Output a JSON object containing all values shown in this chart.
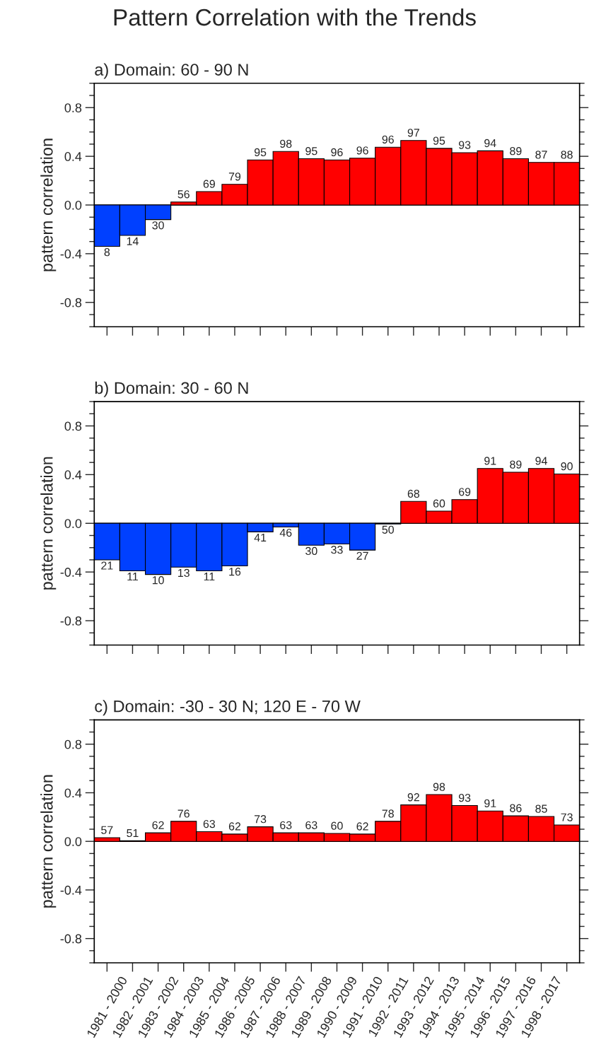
{
  "chart_data": [
    {
      "type": "bar",
      "title": "Pattern Correlation with the Trends",
      "subtitle": "a) Domain: 60 - 90 N",
      "ylabel": "pattern correlation",
      "categories": [
        null,
        null,
        null,
        null,
        null,
        null,
        null,
        null,
        null,
        null,
        null,
        null,
        null,
        null,
        null,
        null,
        null,
        null,
        null
      ],
      "series": [
        {
          "values": [
            -0.34,
            -0.25,
            -0.12,
            0.025,
            0.11,
            0.17,
            0.37,
            0.44,
            0.38,
            0.37,
            0.385,
            0.475,
            0.53,
            0.465,
            0.43,
            0.445,
            0.38,
            0.35,
            0.35
          ],
          "colors": [
            "#0040ff",
            "#0040ff",
            "#0040ff",
            "#ff0000",
            "#ff0000",
            "#ff0000",
            "#ff0000",
            "#ff0000",
            "#ff0000",
            "#ff0000",
            "#ff0000",
            "#ff0000",
            "#ff0000",
            "#ff0000",
            "#ff0000",
            "#ff0000",
            "#ff0000",
            "#ff0000",
            "#ff0000"
          ]
        }
      ],
      "annotations": [
        {
          "text": "8",
          "y": -0.34
        },
        {
          "text": "14",
          "y": -0.25
        },
        {
          "text": "30",
          "y": -0.12
        },
        {
          "text": "56",
          "y": 0.025
        },
        {
          "text": "69",
          "y": 0.11
        },
        {
          "text": "79",
          "y": 0.17
        },
        {
          "text": "95",
          "y": 0.37
        },
        {
          "text": "98",
          "y": 0.44
        },
        {
          "text": "95",
          "y": 0.38
        },
        {
          "text": "96",
          "y": 0.37
        },
        {
          "text": "96",
          "y": 0.385
        },
        {
          "text": "96",
          "y": 0.475
        },
        {
          "text": "97",
          "y": 0.53
        },
        {
          "text": "95",
          "y": 0.465
        },
        {
          "text": "93",
          "y": 0.43
        },
        {
          "text": "94",
          "y": 0.445
        },
        {
          "text": "89",
          "y": 0.38
        },
        {
          "text": "87",
          "y": 0.35
        },
        {
          "text": "88",
          "y": 0.35
        }
      ],
      "ref_lines": [
        {
          "axis": "y",
          "value": 0
        }
      ],
      "ylim": [
        -1,
        1
      ],
      "yticks": [
        {
          "value": -1,
          "label": null
        },
        {
          "value": -0.9,
          "label": null
        },
        -0.8,
        {
          "value": -0.7,
          "label": null
        },
        {
          "value": -0.6,
          "label": null
        },
        {
          "value": -0.5,
          "label": null
        },
        -0.4,
        {
          "value": -0.3,
          "label": null
        },
        {
          "value": -0.2,
          "label": null
        },
        {
          "value": -0.1,
          "label": null
        },
        {
          "value": 0,
          "label": "0.0"
        },
        {
          "value": 0.1,
          "label": null
        },
        {
          "value": 0.2,
          "label": null
        },
        {
          "value": 0.3,
          "label": null
        },
        0.4,
        {
          "value": 0.5,
          "label": null
        },
        {
          "value": 0.6,
          "label": null
        },
        {
          "value": 0.7,
          "label": null
        },
        0.8,
        {
          "value": 0.9,
          "label": null
        },
        {
          "value": 1,
          "label": null
        }
      ],
      "tick_labels": "y"
    },
    {
      "type": "bar",
      "subtitle": "b) Domain: 30 - 60 N",
      "ylabel": "pattern correlation",
      "categories": [
        null,
        null,
        null,
        null,
        null,
        null,
        null,
        null,
        null,
        null,
        null,
        null,
        null,
        null,
        null,
        null,
        null,
        null,
        null
      ],
      "series": [
        {
          "values": [
            -0.3,
            -0.39,
            -0.42,
            -0.36,
            -0.39,
            -0.35,
            -0.07,
            -0.03,
            -0.18,
            -0.17,
            -0.22,
            -0.005,
            0.18,
            0.1,
            0.195,
            0.45,
            0.42,
            0.45,
            0.405
          ],
          "colors": [
            "#0040ff",
            "#0040ff",
            "#0040ff",
            "#0040ff",
            "#0040ff",
            "#0040ff",
            "#0040ff",
            "#0040ff",
            "#0040ff",
            "#0040ff",
            "#0040ff",
            "#0040ff",
            "#ff0000",
            "#ff0000",
            "#ff0000",
            "#ff0000",
            "#ff0000",
            "#ff0000",
            "#ff0000"
          ]
        }
      ],
      "annotations": [
        {
          "text": "21",
          "y": -0.3
        },
        {
          "text": "11",
          "y": -0.39
        },
        {
          "text": "10",
          "y": -0.42
        },
        {
          "text": "13",
          "y": -0.36
        },
        {
          "text": "11",
          "y": -0.39
        },
        {
          "text": "16",
          "y": -0.35
        },
        {
          "text": "41",
          "y": -0.07
        },
        {
          "text": "46",
          "y": -0.03
        },
        {
          "text": "30",
          "y": -0.18
        },
        {
          "text": "33",
          "y": -0.17
        },
        {
          "text": "27",
          "y": -0.22
        },
        {
          "text": "50",
          "y": -0.005
        },
        {
          "text": "68",
          "y": 0.18
        },
        {
          "text": "60",
          "y": 0.1
        },
        {
          "text": "69",
          "y": 0.195
        },
        {
          "text": "91",
          "y": 0.45
        },
        {
          "text": "89",
          "y": 0.42
        },
        {
          "text": "94",
          "y": 0.45
        },
        {
          "text": "90",
          "y": 0.405
        }
      ],
      "ref_lines": [
        {
          "axis": "y",
          "value": 0
        }
      ],
      "ylim": [
        -1,
        1
      ],
      "yticks": [
        {
          "value": -1,
          "label": null
        },
        {
          "value": -0.9,
          "label": null
        },
        -0.8,
        {
          "value": -0.7,
          "label": null
        },
        {
          "value": -0.6,
          "label": null
        },
        {
          "value": -0.5,
          "label": null
        },
        -0.4,
        {
          "value": -0.3,
          "label": null
        },
        {
          "value": -0.2,
          "label": null
        },
        {
          "value": -0.1,
          "label": null
        },
        {
          "value": 0,
          "label": "0.0"
        },
        {
          "value": 0.1,
          "label": null
        },
        {
          "value": 0.2,
          "label": null
        },
        {
          "value": 0.3,
          "label": null
        },
        0.4,
        {
          "value": 0.5,
          "label": null
        },
        {
          "value": 0.6,
          "label": null
        },
        {
          "value": 0.7,
          "label": null
        },
        0.8,
        {
          "value": 0.9,
          "label": null
        },
        {
          "value": 1,
          "label": null
        }
      ],
      "tick_labels": "y"
    },
    {
      "type": "bar",
      "subtitle": "c) Domain: -30 - 30 N; 120 E - 70 W",
      "ylabel": "pattern correlation",
      "categories": [
        "1981 - 2000",
        "1982 - 2001",
        "1983 - 2002",
        "1984 - 2003",
        "1985 - 2004",
        "1986 - 2005",
        "1987 - 2006",
        "1988 - 2007",
        "1989 - 2008",
        "1990 - 2009",
        "1991 - 2010",
        "1992 - 2011",
        "1993 - 2012",
        "1994 - 2013",
        "1995 - 2014",
        "1996 - 2015",
        "1997 - 2016",
        "1998 - 2017",
        null
      ],
      "series": [
        {
          "values": [
            0.03,
            0.005,
            0.07,
            0.165,
            0.08,
            0.06,
            0.12,
            0.07,
            0.07,
            0.065,
            0.06,
            0.165,
            0.3,
            0.385,
            0.295,
            0.25,
            0.21,
            0.205,
            0.135
          ],
          "colors": [
            "#ff0000",
            "#ff0000",
            "#ff0000",
            "#ff0000",
            "#ff0000",
            "#ff0000",
            "#ff0000",
            "#ff0000",
            "#ff0000",
            "#ff0000",
            "#ff0000",
            "#ff0000",
            "#ff0000",
            "#ff0000",
            "#ff0000",
            "#ff0000",
            "#ff0000",
            "#ff0000",
            "#ff0000"
          ]
        }
      ],
      "annotations": [
        {
          "text": "57",
          "y": 0.03
        },
        {
          "text": "51",
          "y": 0.005
        },
        {
          "text": "62",
          "y": 0.07
        },
        {
          "text": "76",
          "y": 0.165
        },
        {
          "text": "63",
          "y": 0.08
        },
        {
          "text": "62",
          "y": 0.06
        },
        {
          "text": "73",
          "y": 0.12
        },
        {
          "text": "63",
          "y": 0.07
        },
        {
          "text": "63",
          "y": 0.07
        },
        {
          "text": "60",
          "y": 0.065
        },
        {
          "text": "62",
          "y": 0.06
        },
        {
          "text": "78",
          "y": 0.165
        },
        {
          "text": "92",
          "y": 0.3
        },
        {
          "text": "98",
          "y": 0.385
        },
        {
          "text": "93",
          "y": 0.295
        },
        {
          "text": "91",
          "y": 0.25
        },
        {
          "text": "86",
          "y": 0.21
        },
        {
          "text": "85",
          "y": 0.205
        },
        {
          "text": "73",
          "y": 0.135
        }
      ],
      "ref_lines": [
        {
          "axis": "y",
          "value": 0
        }
      ],
      "ylim": [
        -1,
        1
      ],
      "yticks": [
        {
          "value": -1,
          "label": null
        },
        {
          "value": -0.9,
          "label": null
        },
        -0.8,
        {
          "value": -0.7,
          "label": null
        },
        {
          "value": -0.6,
          "label": null
        },
        {
          "value": -0.5,
          "label": null
        },
        -0.4,
        {
          "value": -0.3,
          "label": null
        },
        {
          "value": -0.2,
          "label": null
        },
        {
          "value": -0.1,
          "label": null
        },
        {
          "value": 0,
          "label": "0.0"
        },
        {
          "value": 0.1,
          "label": null
        },
        {
          "value": 0.2,
          "label": null
        },
        {
          "value": 0.3,
          "label": null
        },
        0.4,
        {
          "value": 0.5,
          "label": null
        },
        {
          "value": 0.6,
          "label": null
        },
        {
          "value": 0.7,
          "label": null
        },
        0.8,
        {
          "value": 0.9,
          "label": null
        },
        {
          "value": 1,
          "label": null
        }
      ]
    }
  ]
}
